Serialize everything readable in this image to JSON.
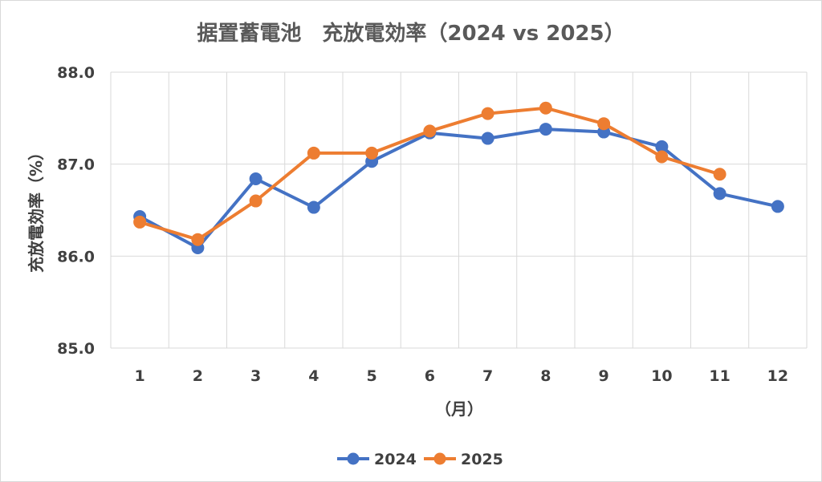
{
  "chart_data": {
    "type": "line",
    "title": "据置蓄電池　充放電効率（2024 vs 2025）",
    "xlabel": "（月）",
    "ylabel": "充放電効率（%）",
    "categories": [
      "1",
      "2",
      "3",
      "4",
      "5",
      "6",
      "7",
      "8",
      "9",
      "10",
      "11",
      "12"
    ],
    "ylim": [
      85.0,
      88.0
    ],
    "yticks": [
      "85.0",
      "86.0",
      "87.0",
      "88.0"
    ],
    "grid": true,
    "legend_position": "bottom",
    "series": [
      {
        "name": "2024",
        "color": "#4472c4",
        "values": [
          86.43,
          86.09,
          86.84,
          86.53,
          87.03,
          87.34,
          87.28,
          87.38,
          87.35,
          87.19,
          86.68,
          86.54
        ]
      },
      {
        "name": "2025",
        "color": "#ed7d31",
        "values": [
          86.37,
          86.18,
          86.6,
          87.12,
          87.12,
          87.36,
          87.55,
          87.61,
          87.44,
          87.08,
          86.89,
          null
        ]
      }
    ]
  }
}
